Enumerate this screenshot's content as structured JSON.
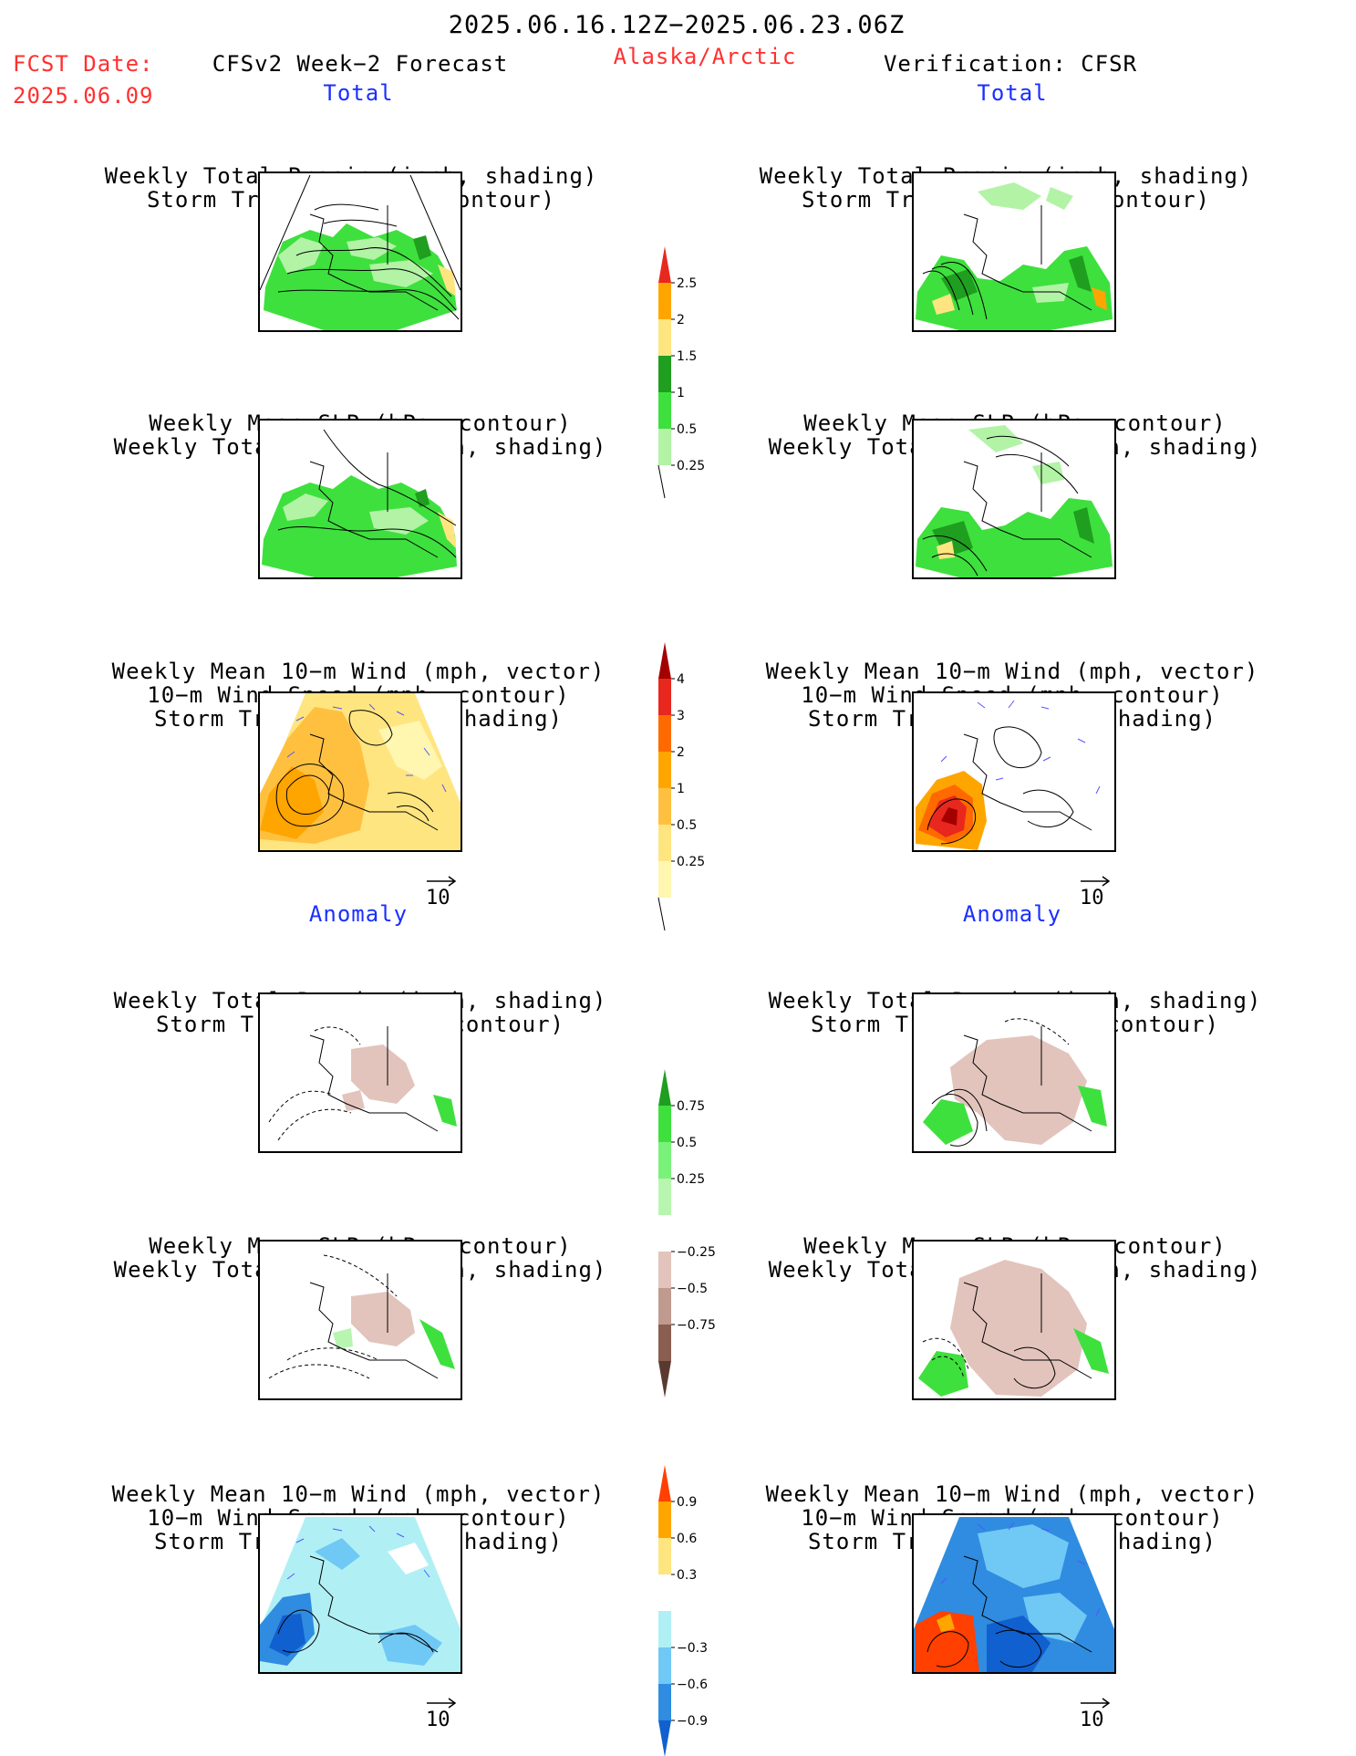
{
  "header": {
    "period": "2025.06.16.12Z−2025.06.23.06Z",
    "fcst_label": "FCST Date:",
    "fcst_date": "2025.06.09",
    "left_title": "CFSv2 Week−2 Forecast",
    "region": "Alaska/Arctic",
    "right_title": "Verification: CFSR"
  },
  "sections": {
    "total": "Total",
    "anomaly": "Anomaly"
  },
  "panel_titles": {
    "precip_storm": [
      "Weekly Total Precip (inch, shading)",
      "Storm Track Density (contour)"
    ],
    "slp_precip": [
      "Weekly Mean SLP (hPa, contour)",
      "Weekly Total Precip (inch, shading)"
    ],
    "wind_storm": [
      "Weekly Mean 10−m Wind (mph, vector)",
      "10−m Wind Speed (mph, contour)",
      "Storm Track Density (shading)"
    ]
  },
  "vector_reference": "10",
  "colorbars": {
    "total_precip": {
      "labels": [
        "2.5",
        "2",
        "1.5",
        "1",
        "0.5",
        "0.25"
      ],
      "colors": [
        "#e8281e",
        "#ffa500",
        "#ffe580",
        "#1f9e1f",
        "#3ee03e",
        "#b2f3a6"
      ]
    },
    "total_storm": {
      "labels": [
        "4",
        "3",
        "2",
        "1",
        "0.5",
        "0.25"
      ],
      "colors": [
        "#a50000",
        "#e8281e",
        "#ff6a00",
        "#ffa500",
        "#ffc040",
        "#ffe580",
        "#fff6b0"
      ]
    },
    "anom_precip": {
      "labels": [
        "0.75",
        "0.5",
        "0.25",
        "−0.25",
        "−0.5",
        "−0.75"
      ],
      "colors": [
        "#1f9e1f",
        "#3ee03e",
        "#7af27a",
        "#b8f5b0",
        "#ffffff",
        "#e2c4bc",
        "#c09a8e",
        "#8a5e50",
        "#5a3a30"
      ]
    },
    "anom_storm": {
      "labels": [
        "0.9",
        "0.6",
        "0.3",
        "−0.3",
        "−0.6",
        "−0.9"
      ],
      "colors": [
        "#ff4000",
        "#ffa500",
        "#ffe580",
        "#ffffff",
        "#b0f0f5",
        "#70c8f5",
        "#2f8ce0",
        "#1060d0"
      ]
    }
  }
}
